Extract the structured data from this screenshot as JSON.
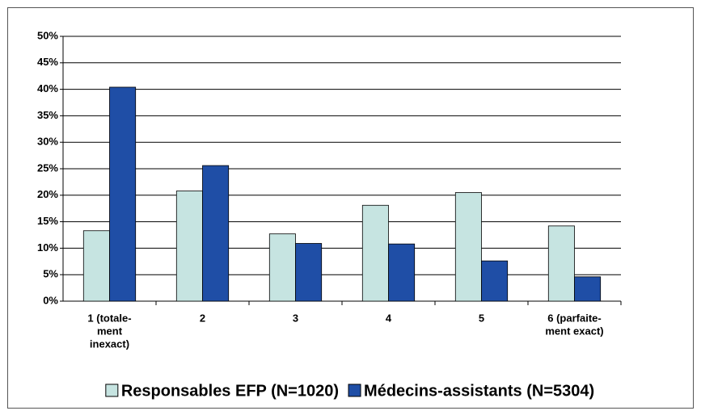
{
  "chart_data": {
    "type": "bar",
    "categories": [
      [
        "1 (totale-",
        "ment",
        "inexact)"
      ],
      [
        "2"
      ],
      [
        "3"
      ],
      [
        "4"
      ],
      [
        "5"
      ],
      [
        "6 (parfaite-",
        "ment exact)"
      ]
    ],
    "series": [
      {
        "name": "Responsables EFP (N=1020)",
        "color": "#c6e4e1",
        "values": [
          13.3,
          20.8,
          12.7,
          18.1,
          20.5,
          14.2
        ]
      },
      {
        "name": "Médecins-assistants (N=5304)",
        "color": "#1f4ea6",
        "values": [
          40.4,
          25.6,
          10.9,
          10.8,
          7.6,
          4.6
        ]
      }
    ],
    "ylim": [
      0,
      50
    ],
    "yticks": [
      {
        "value": 0,
        "label": "0%"
      },
      {
        "value": 5,
        "label": "5%"
      },
      {
        "value": 10,
        "label": "10%"
      },
      {
        "value": 15,
        "label": "15%"
      },
      {
        "value": 20,
        "label": "20%"
      },
      {
        "value": 25,
        "label": "25%"
      },
      {
        "value": 30,
        "label": "30%"
      },
      {
        "value": 35,
        "label": "35%"
      },
      {
        "value": 40,
        "label": "40%"
      },
      {
        "value": 45,
        "label": "45%"
      },
      {
        "value": 50,
        "label": "50%"
      }
    ],
    "grid": true,
    "legend": "bottom"
  }
}
